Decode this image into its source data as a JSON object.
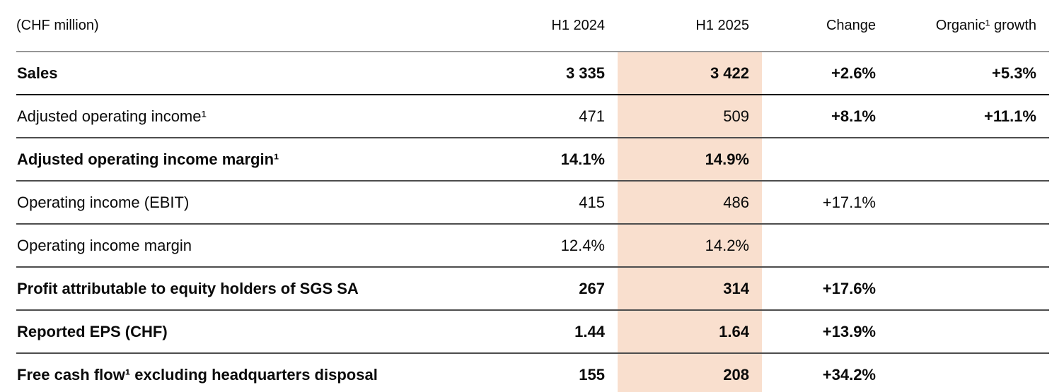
{
  "colors": {
    "highlight_column_bg": "#f9dfce",
    "header_rule": "#969696",
    "row_rule": "#4d4d4d",
    "text": "#0a0a0a"
  },
  "table": {
    "unit_label": "(CHF million)",
    "columns": [
      "H1 2024",
      "H1 2025",
      "Change",
      "Organic¹ growth"
    ],
    "highlighted_column": "H1 2025",
    "rows": [
      {
        "label": "Sales",
        "h1_2024": "3 335",
        "h1_2025": "3 422",
        "change": "+2.6%",
        "organic_growth": "+5.3%",
        "bold": true,
        "change_bold": true
      },
      {
        "label": "Adjusted operating income¹",
        "h1_2024": "471",
        "h1_2025": "509",
        "change": "+8.1%",
        "organic_growth": "+11.1%",
        "bold": false,
        "change_bold": true
      },
      {
        "label": "Adjusted operating income margin¹",
        "h1_2024": "14.1%",
        "h1_2025": "14.9%",
        "change": "",
        "organic_growth": "",
        "bold": true,
        "change_bold": true
      },
      {
        "label": "Operating income (EBIT)",
        "h1_2024": "415",
        "h1_2025": "486",
        "change": "+17.1%",
        "organic_growth": "",
        "bold": false,
        "change_bold": false
      },
      {
        "label": "Operating income margin",
        "h1_2024": "12.4%",
        "h1_2025": "14.2%",
        "change": "",
        "organic_growth": "",
        "bold": false,
        "change_bold": false
      },
      {
        "label": "Profit attributable to equity holders of SGS SA",
        "h1_2024": "267",
        "h1_2025": "314",
        "change": "+17.6%",
        "organic_growth": "",
        "bold": true,
        "change_bold": true
      },
      {
        "label": "Reported EPS (CHF)",
        "h1_2024": "1.44",
        "h1_2025": "1.64",
        "change": "+13.9%",
        "organic_growth": "",
        "bold": true,
        "change_bold": true
      },
      {
        "label": "Free cash flow¹ excluding headquarters disposal",
        "h1_2024": "155",
        "h1_2025": "208",
        "change": "+34.2%",
        "organic_growth": "",
        "bold": true,
        "change_bold": true
      }
    ]
  }
}
